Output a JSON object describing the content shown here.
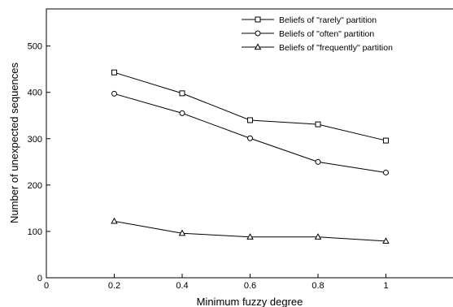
{
  "chart_data": {
    "type": "line",
    "title": "",
    "xlabel": "Minimum fuzzy degree",
    "ylabel": "Number of unexpected sequences",
    "xlim": [
      0,
      1.2
    ],
    "ylim": [
      0,
      580
    ],
    "xticks": [
      0,
      0.2,
      0.4,
      0.6,
      0.8,
      1
    ],
    "xtick_labels": [
      "0",
      "0.2",
      "0.4",
      "0.6",
      "0.8",
      "1"
    ],
    "yticks": [
      0,
      100,
      200,
      300,
      400,
      500
    ],
    "ytick_labels": [
      "0",
      "100",
      "200",
      "300",
      "400",
      "500"
    ],
    "grid": false,
    "legend_position": "top-right",
    "x": [
      0.2,
      0.4,
      0.6,
      0.8,
      1.0
    ],
    "series": [
      {
        "name": "Beliefs of \"rarely\" partition",
        "marker": "square",
        "values": [
          443,
          398,
          340,
          331,
          296
        ]
      },
      {
        "name": "Beliefs of \"often\" partition",
        "marker": "circle",
        "values": [
          397,
          355,
          301,
          250,
          227
        ]
      },
      {
        "name": "Beliefs of \"frequently\" partition",
        "marker": "triangle",
        "values": [
          122,
          96,
          88,
          88,
          79
        ]
      }
    ],
    "colors": {
      "line": "#000000",
      "background": "#ffffff"
    }
  }
}
